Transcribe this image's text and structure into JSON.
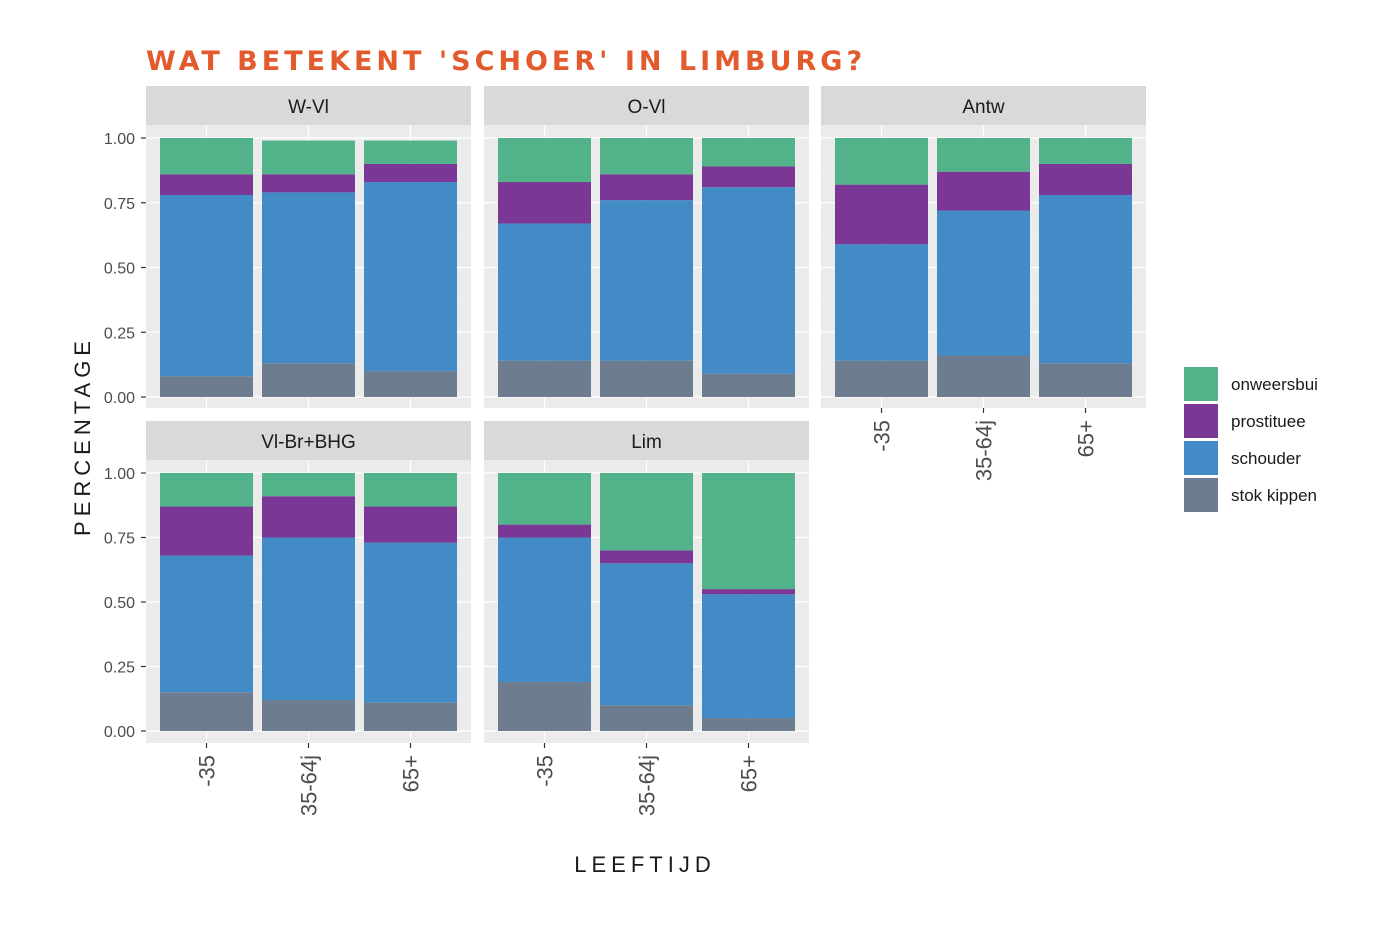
{
  "title": "WAT BETEKENT 'SCHOER' IN LIMBURG?",
  "colors": {
    "title": "#e35a2d",
    "onweersbui": "#52b38a",
    "prostituee": "#7b3796",
    "schouder": "#438bc6",
    "stok kippen": "#6d7d8f",
    "panel_bg": "#ebebeb",
    "strip_bg": "#d9d9d9"
  },
  "chart_data": {
    "type": "bar",
    "stacked": true,
    "facet_layout": "3 columns x 2 rows",
    "xlabel": "LEEFTIJD",
    "ylabel": "PERCENTAGE",
    "ylim": [
      0,
      1
    ],
    "yticks": [
      "0.00",
      "0.25",
      "0.50",
      "0.75",
      "1.00"
    ],
    "categories": [
      "-35",
      "35-64j",
      "65+"
    ],
    "series_order": [
      "stok kippen",
      "schouder",
      "prostituee",
      "onweersbui"
    ],
    "legend": {
      "position": "right",
      "entries": [
        "onweersbui",
        "prostituee",
        "schouder",
        "stok kippen"
      ]
    },
    "panels": [
      {
        "name": "W-Vl",
        "series": [
          {
            "name": "stok kippen",
            "values": [
              0.08,
              0.13,
              0.1
            ]
          },
          {
            "name": "schouder",
            "values": [
              0.7,
              0.66,
              0.73
            ]
          },
          {
            "name": "prostituee",
            "values": [
              0.08,
              0.07,
              0.07
            ]
          },
          {
            "name": "onweersbui",
            "values": [
              0.14,
              0.13,
              0.09
            ]
          }
        ]
      },
      {
        "name": "O-Vl",
        "series": [
          {
            "name": "stok kippen",
            "values": [
              0.14,
              0.14,
              0.09
            ]
          },
          {
            "name": "schouder",
            "values": [
              0.53,
              0.62,
              0.72
            ]
          },
          {
            "name": "prostituee",
            "values": [
              0.16,
              0.1,
              0.08
            ]
          },
          {
            "name": "onweersbui",
            "values": [
              0.17,
              0.14,
              0.11
            ]
          }
        ]
      },
      {
        "name": "Antw",
        "series": [
          {
            "name": "stok kippen",
            "values": [
              0.14,
              0.16,
              0.13
            ]
          },
          {
            "name": "schouder",
            "values": [
              0.45,
              0.56,
              0.65
            ]
          },
          {
            "name": "prostituee",
            "values": [
              0.23,
              0.15,
              0.12
            ]
          },
          {
            "name": "onweersbui",
            "values": [
              0.18,
              0.13,
              0.1
            ]
          }
        ]
      },
      {
        "name": "Vl-Br+BHG",
        "series": [
          {
            "name": "stok kippen",
            "values": [
              0.15,
              0.12,
              0.11
            ]
          },
          {
            "name": "schouder",
            "values": [
              0.53,
              0.63,
              0.62
            ]
          },
          {
            "name": "prostituee",
            "values": [
              0.19,
              0.16,
              0.14
            ]
          },
          {
            "name": "onweersbui",
            "values": [
              0.13,
              0.09,
              0.13
            ]
          }
        ]
      },
      {
        "name": "Lim",
        "series": [
          {
            "name": "stok kippen",
            "values": [
              0.19,
              0.1,
              0.05
            ]
          },
          {
            "name": "schouder",
            "values": [
              0.56,
              0.55,
              0.48
            ]
          },
          {
            "name": "prostituee",
            "values": [
              0.05,
              0.05,
              0.02
            ]
          },
          {
            "name": "onweersbui",
            "values": [
              0.2,
              0.3,
              0.45
            ]
          }
        ]
      }
    ]
  }
}
